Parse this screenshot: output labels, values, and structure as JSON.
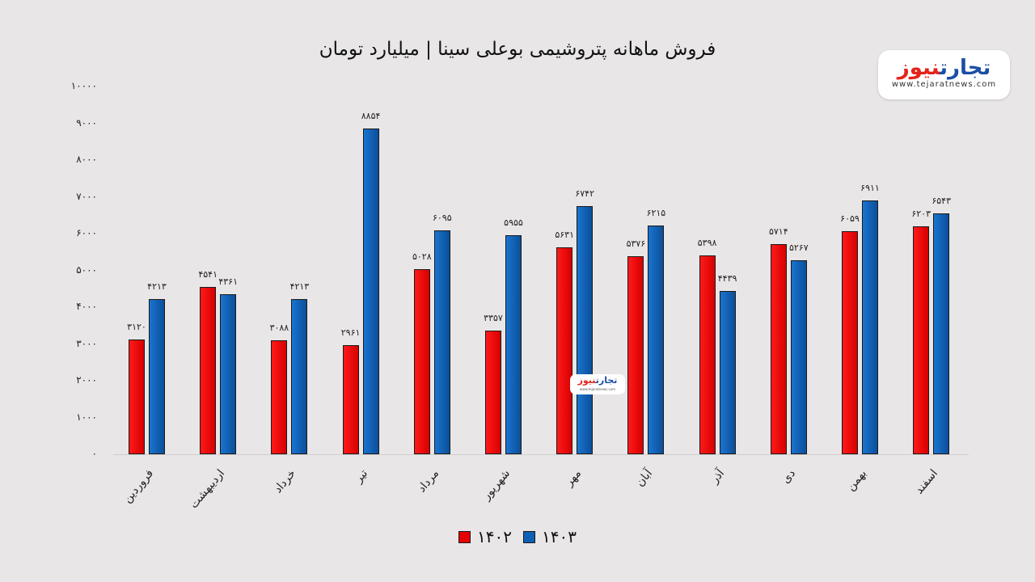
{
  "chart_data": {
    "type": "bar",
    "title": "فروش ماهانه پتروشیمی بوعلی سینا | میلیارد تومان",
    "xlabel": "",
    "ylabel": "",
    "ylim": [
      0,
      10000
    ],
    "yticks": [
      "۰",
      "۱۰۰۰",
      "۲۰۰۰",
      "۳۰۰۰",
      "۴۰۰۰",
      "۵۰۰۰",
      "۶۰۰۰",
      "۷۰۰۰",
      "۸۰۰۰",
      "۹۰۰۰",
      "۱۰۰۰۰"
    ],
    "grid": false,
    "legend_position": "bottom",
    "categories": [
      "فروردین",
      "اردیبهشت",
      "خرداد",
      "تیر",
      "مرداد",
      "شهریور",
      "مهر",
      "آبان",
      "آذر",
      "دی",
      "بهمن",
      "اسفند"
    ],
    "series": [
      {
        "name": "۱۴۰۲",
        "color": "#e60000",
        "values": [
          3120,
          4541,
          3088,
          2961,
          5028,
          3357,
          5631,
          5376,
          5398,
          5714,
          6059,
          6203
        ],
        "labels": [
          "۳۱۲۰",
          "۴۵۴۱",
          "۳۰۸۸",
          "۲۹۶۱",
          "۵۰۲۸",
          "۳۳۵۷",
          "۵۶۳۱",
          "۵۳۷۶",
          "۵۳۹۸",
          "۵۷۱۴",
          "۶۰۵۹",
          "۶۲۰۳"
        ]
      },
      {
        "name": "۱۴۰۳",
        "color": "#0f5fb5",
        "values": [
          4213,
          4361,
          4213,
          8854,
          6095,
          5955,
          6742,
          6215,
          4439,
          5267,
          6911,
          6543
        ],
        "labels": [
          "۴۲۱۳",
          "۴۳۶۱",
          "۴۲۱۳",
          "۸۸۵۴",
          "۶۰۹۵",
          "۵۹۵۵",
          "۶۷۴۲",
          "۶۲۱۵",
          "۴۴۳۹",
          "۵۲۶۷",
          "۶۹۱۱",
          "۶۵۴۳"
        ]
      }
    ]
  },
  "logo": {
    "part1": "تجارت",
    "part2": "نیوز",
    "url": "www.tejaratnews.com"
  }
}
